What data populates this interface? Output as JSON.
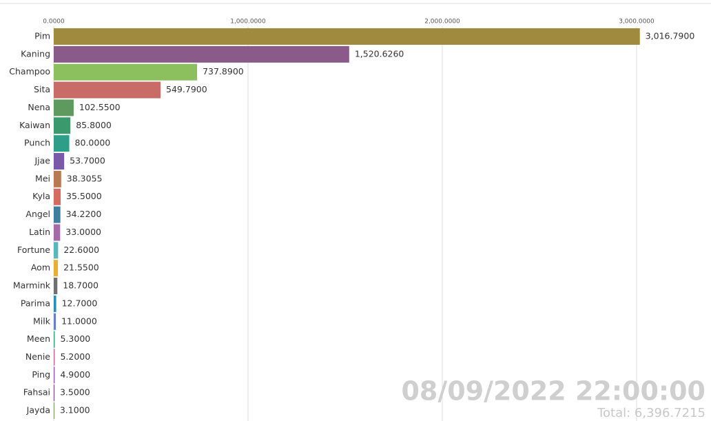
{
  "chart_data": {
    "type": "barh",
    "categories": [
      "Pim",
      "Kaning",
      "Champoo",
      "Sita",
      "Nena",
      "Kaiwan",
      "Punch",
      "Jjae",
      "Mei",
      "Kyla",
      "Angel",
      "Latin",
      "Fortune",
      "Aom",
      "Marmink",
      "Parima",
      "Milk",
      "Meen",
      "Nenie",
      "Ping",
      "Fahsai",
      "Jayda"
    ],
    "values": [
      3016.79,
      1520.626,
      737.89,
      549.79,
      102.55,
      85.8,
      80,
      53.7,
      38.3055,
      35.5,
      34.22,
      33,
      22.6,
      21.55,
      18.7,
      12.7,
      11,
      5.3,
      5.2,
      4.9,
      3.5,
      3.1
    ],
    "value_labels": [
      "3,016.7900",
      "1,520.6260",
      "737.8900",
      "549.7900",
      "102.5500",
      "85.8000",
      "80.0000",
      "53.7000",
      "38.3055",
      "35.5000",
      "34.2200",
      "33.0000",
      "22.6000",
      "21.5500",
      "18.7000",
      "12.7000",
      "11.0000",
      "5.3000",
      "5.2000",
      "4.9000",
      "3.5000",
      "3.1000"
    ],
    "colors": [
      "#a08a3e",
      "#8a5a8a",
      "#8cbf5e",
      "#c96b66",
      "#5e9a5e",
      "#3a9a6e",
      "#2e9e88",
      "#7a5aa8",
      "#b87a55",
      "#d66a5e",
      "#3e7e9e",
      "#a56aa8",
      "#5ab8b8",
      "#e8b030",
      "#707070",
      "#2e8eb0",
      "#6a7ec8",
      "#3aa88a",
      "#c86a9a",
      "#9a5ab0",
      "#7a3a8a",
      "#6a8a3a"
    ],
    "xlim": [
      0,
      3383
    ],
    "xticks": [
      {
        "value": 0,
        "label": "0.0000"
      },
      {
        "value": 1000,
        "label": "1,000.0000"
      },
      {
        "value": 2000,
        "label": "2,000.0000"
      },
      {
        "value": 3000,
        "label": "3,000.0000"
      }
    ],
    "grid": true,
    "date": "08/09/2022 22:00:00",
    "total": "Total: 6,396.7215"
  }
}
